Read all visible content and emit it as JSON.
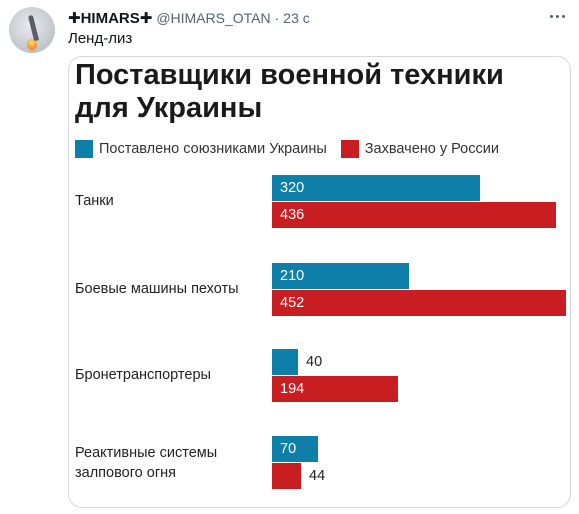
{
  "tweet": {
    "display_name": "✚HIMARS✚",
    "handle": "@HIMARS_OTAN",
    "separator": "·",
    "time": "23 с",
    "text": "Ленд-лиз",
    "avatar_icon": "rocket-launch-icon",
    "more_icon": "more-dots-icon"
  },
  "chart_data": {
    "type": "bar",
    "orientation": "horizontal",
    "title": "Поставщики военной техники для Украины",
    "legend_position": "top-left",
    "categories": [
      "Танки",
      "Боевые машины пехоты",
      "Бронетранспортеры",
      "Реактивные системы залпового огня"
    ],
    "series": [
      {
        "name": "Поставлено союзниками Украины",
        "color": "#0e7fa8",
        "values": [
          320,
          210,
          40,
          70
        ]
      },
      {
        "name": "Захвачено у России",
        "color": "#c81e22",
        "values": [
          436,
          452,
          194,
          44
        ]
      }
    ],
    "xlim": [
      0,
      452
    ]
  }
}
